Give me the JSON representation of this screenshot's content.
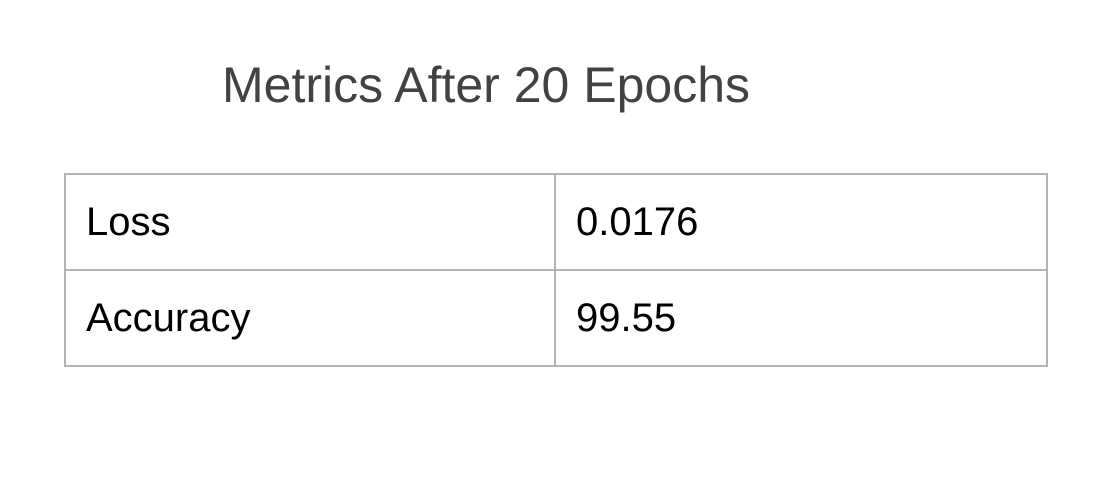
{
  "chart_data": {
    "type": "table",
    "title": "Metrics After 20 Epochs",
    "rows": [
      [
        "Loss",
        "0.0176"
      ],
      [
        "Accuracy",
        "99.55"
      ]
    ]
  }
}
